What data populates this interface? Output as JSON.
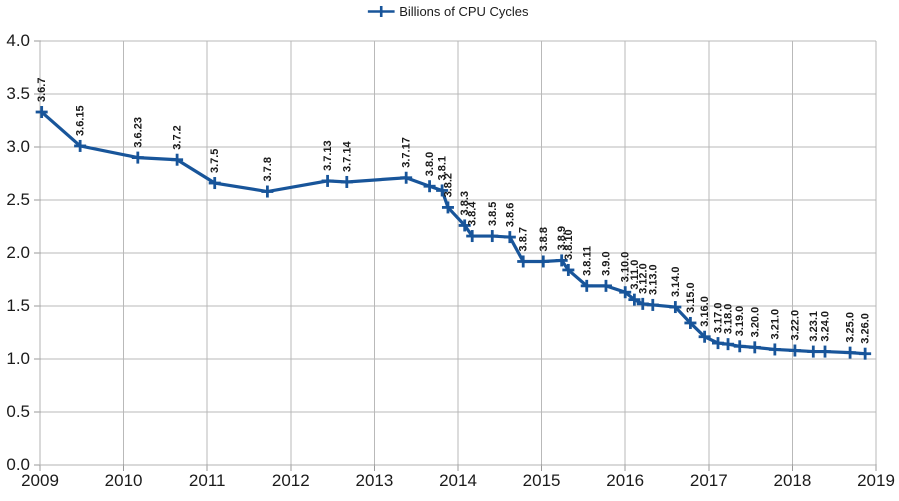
{
  "colors": {
    "series_line": "#18559a",
    "gridline": "#b9b9b9",
    "axis_line": "#b3b3b3",
    "tick": "#9a9a9a",
    "axis_text": "#1b1b1b",
    "data_label_text": "#1a1a1a",
    "background": "#ffffff"
  },
  "chart_data": {
    "type": "line",
    "title": "",
    "series_name": "Billions of CPU Cycles",
    "legend_position": "top-center",
    "grid": true,
    "marker": "plus",
    "xlabel": "",
    "ylabel": "",
    "x_axis": {
      "min": 2009,
      "max": 2019,
      "ticks": [
        2009,
        2010,
        2011,
        2012,
        2013,
        2014,
        2015,
        2016,
        2017,
        2018,
        2019
      ]
    },
    "y_axis": {
      "min": 0,
      "max": 4,
      "step": 0.5,
      "ticks": [
        "0.0",
        "0.5",
        "1.0",
        "1.5",
        "2.0",
        "2.5",
        "3.0",
        "3.5",
        "4.0"
      ]
    },
    "points": [
      {
        "label": "3.6.7",
        "x": 2009.02,
        "y": 3.33
      },
      {
        "label": "3.6.15",
        "x": 2009.48,
        "y": 3.01
      },
      {
        "label": "3.6.23",
        "x": 2010.17,
        "y": 2.9
      },
      {
        "label": "3.7.2",
        "x": 2010.64,
        "y": 2.88
      },
      {
        "label": "3.7.5",
        "x": 2011.09,
        "y": 2.66
      },
      {
        "label": "3.7.8",
        "x": 2011.72,
        "y": 2.58
      },
      {
        "label": "3.7.13",
        "x": 2012.44,
        "y": 2.68
      },
      {
        "label": "3.7.14",
        "x": 2012.67,
        "y": 2.67
      },
      {
        "label": "3.7.17",
        "x": 2013.38,
        "y": 2.71
      },
      {
        "label": "3.8.0",
        "x": 2013.66,
        "y": 2.63
      },
      {
        "label": "3.8.1",
        "x": 2013.81,
        "y": 2.59
      },
      {
        "label": "3.8.2",
        "x": 2013.88,
        "y": 2.43
      },
      {
        "label": "3.8.3",
        "x": 2014.08,
        "y": 2.26
      },
      {
        "label": "3.8.4",
        "x": 2014.17,
        "y": 2.16
      },
      {
        "label": "3.8.5",
        "x": 2014.41,
        "y": 2.16
      },
      {
        "label": "3.8.6",
        "x": 2014.62,
        "y": 2.15
      },
      {
        "label": "3.8.7",
        "x": 2014.78,
        "y": 1.92
      },
      {
        "label": "3.8.8",
        "x": 2015.02,
        "y": 1.92
      },
      {
        "label": "3.8.9",
        "x": 2015.24,
        "y": 1.93
      },
      {
        "label": "3.8.10",
        "x": 2015.32,
        "y": 1.84
      },
      {
        "label": "3.8.11",
        "x": 2015.54,
        "y": 1.69
      },
      {
        "label": "3.9.0",
        "x": 2015.77,
        "y": 1.69
      },
      {
        "label": "3.10.0",
        "x": 2016.0,
        "y": 1.63
      },
      {
        "label": "3.11.0",
        "x": 2016.11,
        "y": 1.56
      },
      {
        "label": "3.12.0",
        "x": 2016.21,
        "y": 1.52
      },
      {
        "label": "3.13.0",
        "x": 2016.33,
        "y": 1.51
      },
      {
        "label": "3.14.0",
        "x": 2016.6,
        "y": 1.49
      },
      {
        "label": "3.15.0",
        "x": 2016.78,
        "y": 1.34
      },
      {
        "label": "3.16.0",
        "x": 2016.95,
        "y": 1.21
      },
      {
        "label": "3.17.0",
        "x": 2017.11,
        "y": 1.15
      },
      {
        "label": "3.18.0",
        "x": 2017.23,
        "y": 1.14
      },
      {
        "label": "3.19.0",
        "x": 2017.37,
        "y": 1.12
      },
      {
        "label": "3.20.0",
        "x": 2017.55,
        "y": 1.11
      },
      {
        "label": "3.21.0",
        "x": 2017.79,
        "y": 1.09
      },
      {
        "label": "3.22.0",
        "x": 2018.03,
        "y": 1.08
      },
      {
        "label": "3.23.1",
        "x": 2018.25,
        "y": 1.07
      },
      {
        "label": "3.24.0",
        "x": 2018.39,
        "y": 1.07
      },
      {
        "label": "3.25.0",
        "x": 2018.69,
        "y": 1.06
      },
      {
        "label": "3.26.0",
        "x": 2018.87,
        "y": 1.05
      }
    ]
  }
}
